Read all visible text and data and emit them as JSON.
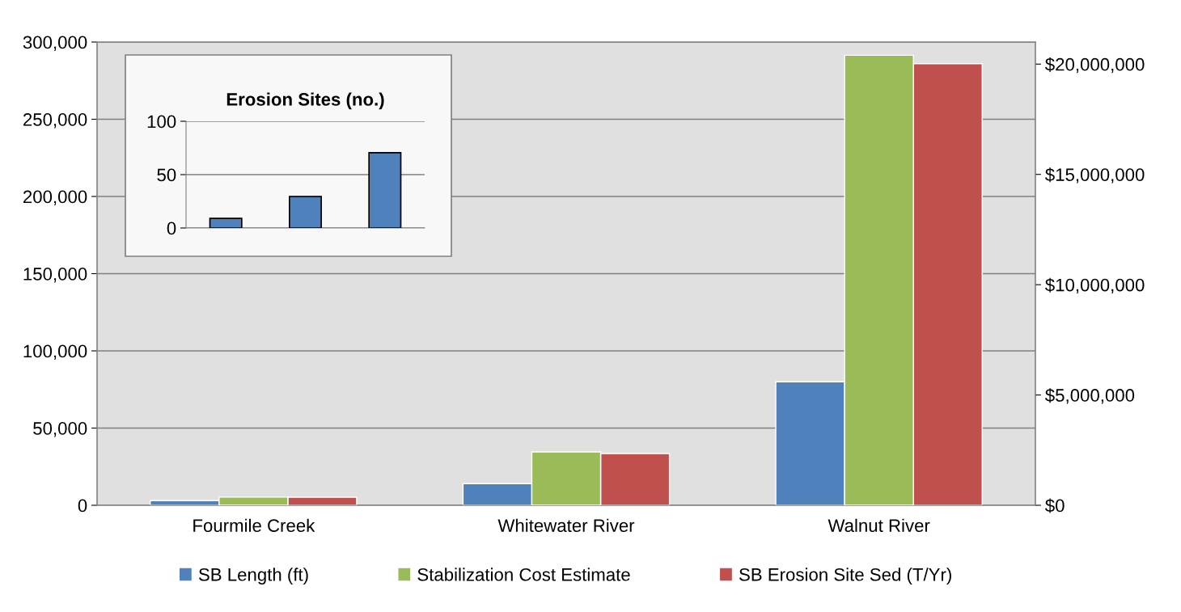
{
  "chart_data": [
    {
      "type": "bar",
      "categories": [
        "Fourmile Creek",
        "Whitewater River",
        "Walnut River"
      ],
      "series": [
        {
          "name": "SB Length (ft)",
          "color": "#4f81bd",
          "values": [
            3000,
            14000,
            80000
          ]
        },
        {
          "name": "Stabilization Cost Estimate",
          "color": "#9bbb59",
          "axis": "y2",
          "values": [
            370000,
            2420000,
            20400000
          ]
        },
        {
          "name": "SB Erosion Site Sed (T/Yr)",
          "color": "#c0504d",
          "values": [
            5200,
            33500,
            286000
          ]
        }
      ],
      "ylim": [
        0,
        300000
      ],
      "yticks": [
        0,
        {
          "value": 50000,
          "label": "50,000"
        },
        {
          "value": 100000,
          "label": "100,000"
        },
        {
          "value": 150000,
          "label": "150,000"
        },
        {
          "value": 200000,
          "label": "200,000"
        },
        {
          "value": 250000,
          "label": "250,000"
        },
        {
          "value": 300000,
          "label": "300,000"
        }
      ],
      "y2lim": [
        0,
        21000000
      ],
      "y2ticks": [
        {
          "value": 0,
          "label": "$0"
        },
        {
          "value": 5000000,
          "label": "$5,000,000"
        },
        {
          "value": 10000000,
          "label": "$10,000,000"
        },
        {
          "value": 15000000,
          "label": "$15,000,000"
        },
        {
          "value": 20000000,
          "label": "$20,000,000"
        }
      ],
      "grid": "y",
      "legend": "bottom"
    },
    {
      "type": "bar",
      "title": "Erosion Sites (no.)",
      "categories": [
        null,
        null,
        null
      ],
      "values": [
        9,
        29.5,
        70.5
      ],
      "color": "#4f81bd",
      "ylim": [
        0,
        100
      ],
      "yticks": [
        0,
        50,
        100
      ],
      "grid": "y",
      "tick_labels": "y"
    }
  ]
}
